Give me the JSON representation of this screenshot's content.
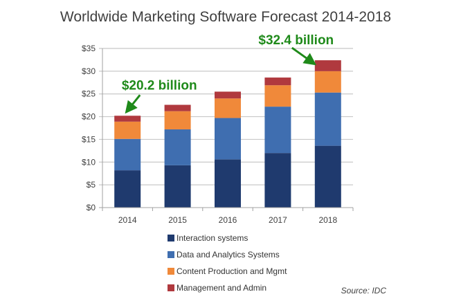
{
  "chart_data": {
    "type": "bar",
    "stacked": true,
    "title": "Worldwide Marketing Software Forecast 2014-2018",
    "xlabel": "",
    "ylabel": "",
    "categories": [
      "2014",
      "2015",
      "2016",
      "2017",
      "2018"
    ],
    "ylim": [
      0,
      35
    ],
    "yticks": [
      0,
      5,
      10,
      15,
      20,
      25,
      30,
      35
    ],
    "ytick_labels": [
      "$0",
      "$5",
      "$10",
      "$15",
      "$20",
      "$25",
      "$30",
      "$35"
    ],
    "grid": true,
    "series": [
      {
        "name": "Interaction systems",
        "color": "#1f3a6e",
        "values": [
          8.2,
          9.3,
          10.6,
          12.0,
          13.6
        ]
      },
      {
        "name": "Data and Analytics Systems",
        "color": "#3f6eb0",
        "values": [
          6.9,
          7.9,
          9.1,
          10.2,
          11.7
        ]
      },
      {
        "name": "Content Production and Mgmt",
        "color": "#f0893a",
        "values": [
          3.8,
          4.0,
          4.3,
          4.7,
          4.7
        ]
      },
      {
        "name": "Management and Admin",
        "color": "#b0393e",
        "values": [
          1.3,
          1.4,
          1.5,
          1.7,
          2.4
        ]
      }
    ],
    "legend_position": "bottom",
    "annotations": [
      {
        "text": "$20.2 billion",
        "category": "2014",
        "value": 20.2
      },
      {
        "text": "$32.4 billion",
        "category": "2018",
        "value": 32.4
      }
    ],
    "source": "Source: IDC"
  },
  "colors": {
    "annotation": "#1f8a1a",
    "grid": "#c8c8c8",
    "axis": "#a0a0a0"
  }
}
